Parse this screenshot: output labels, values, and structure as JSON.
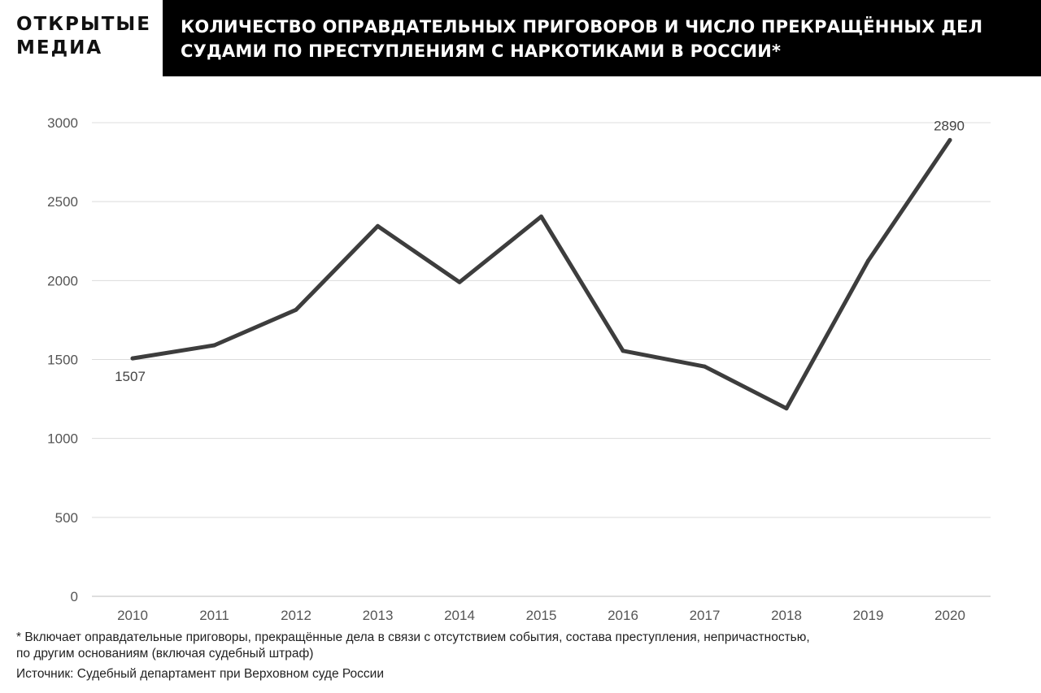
{
  "logo": {
    "line1": "ОТКРЫТЫЕ",
    "line2": "МЕДИА"
  },
  "header": {
    "title_line1": "КОЛИЧЕСТВО ОПРАВДАТЕЛЬНЫХ ПРИГОВОРОВ И ЧИСЛО ПРЕКРАЩЁННЫХ ДЕЛ",
    "title_line2": "СУДАМИ ПО ПРЕСТУПЛЕНИЯМ С НАРКОТИКАМИ В РОССИИ*"
  },
  "chart_data": {
    "type": "line",
    "title": "КОЛИЧЕСТВО ОПРАВДАТЕЛЬНЫХ ПРИГОВОРОВ И ЧИСЛО ПРЕКРАЩЁННЫХ ДЕЛ СУДАМИ ПО ПРЕСТУПЛЕНИЯМ С НАРКОТИКАМИ В РОССИИ*",
    "x": [
      "2010",
      "2011",
      "2012",
      "2013",
      "2014",
      "2015",
      "2016",
      "2017",
      "2018",
      "2019",
      "2020"
    ],
    "series": [
      {
        "values": [
          1507,
          1590,
          1815,
          2345,
          1990,
          2405,
          1555,
          1455,
          1190,
          2125,
          2890
        ]
      }
    ],
    "y_ticks": [
      "0",
      "500",
      "1000",
      "1500",
      "2000",
      "2500",
      "3000"
    ],
    "ylim": [
      0,
      3000
    ],
    "grid": true,
    "line_color": "#3d3d3d",
    "data_labels": [
      {
        "x": "2010",
        "text": "1507"
      },
      {
        "x": "2020",
        "text": "2890"
      }
    ]
  },
  "footnote": {
    "line1": "* Включает оправдательные приговоры, прекращённые дела в связи с отсутствием события, состава преступления, непричастностью,",
    "line2": "по другим основаниям (включая судебный штраф)",
    "source": "Источник: Судебный департамент при Верховном суде России"
  }
}
